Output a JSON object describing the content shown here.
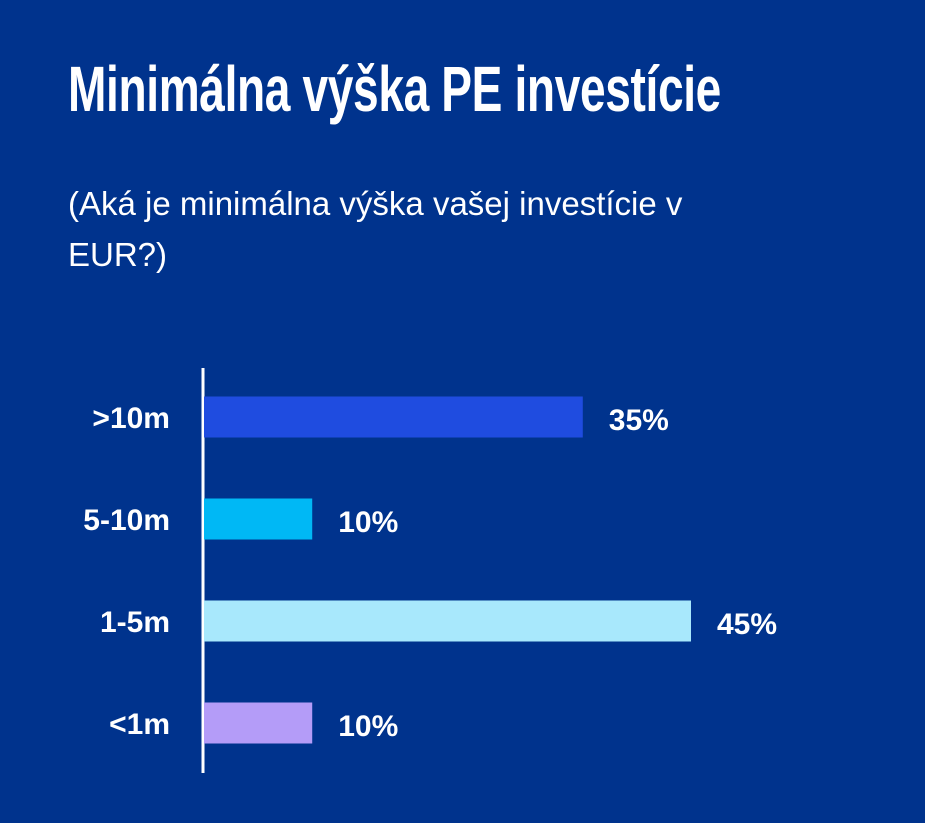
{
  "chart_data": {
    "type": "bar",
    "orientation": "horizontal",
    "title": "Minimálna výška PE investície",
    "subtitle": "(Aká je minimálna výška vašej investície v EUR?)",
    "categories": [
      ">10m",
      "5-10m",
      "1-5m",
      "<1m"
    ],
    "values": [
      35,
      10,
      45,
      10
    ],
    "value_labels": [
      "35%",
      "10%",
      "45%",
      "10%"
    ],
    "colors": [
      "#1f4ce0",
      "#00b8f5",
      "#a8e8fc",
      "#b49cf8"
    ],
    "background": "#00338d",
    "xlabel": "",
    "ylabel": "",
    "xlim": [
      0,
      45
    ],
    "grid": false
  }
}
